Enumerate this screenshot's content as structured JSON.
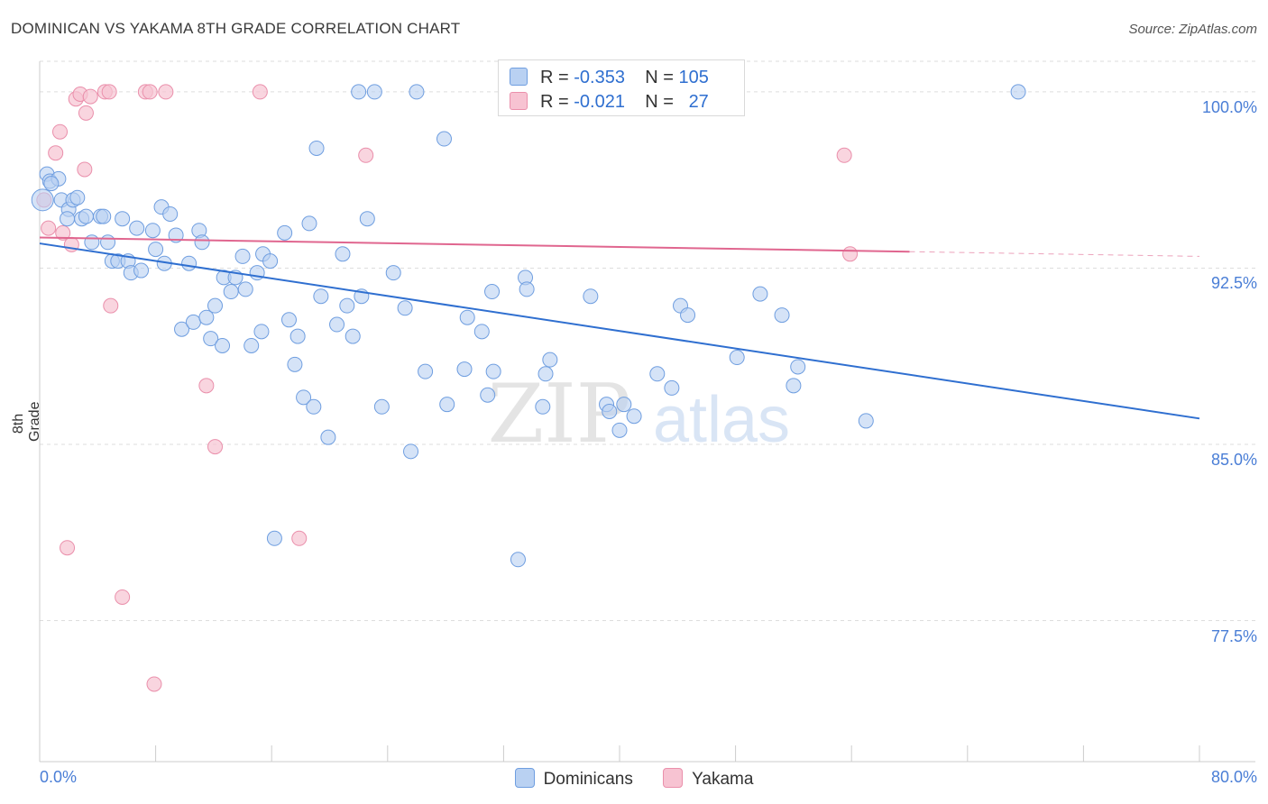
{
  "header": {
    "title": "DOMINICAN VS YAKAMA 8TH GRADE CORRELATION CHART",
    "source": "Source: ZipAtlas.com"
  },
  "legend": {
    "rows": [
      {
        "r_label": "R =",
        "r_value": "-0.353",
        "n_label": "N =",
        "n_value": "105"
      },
      {
        "r_label": "R =",
        "r_value": "-0.021",
        "n_label": "N =",
        "n_value": "27"
      }
    ]
  },
  "bottom_legend": [
    "Dominicans",
    "Yakama"
  ],
  "watermark": {
    "zip": "ZIP",
    "atlas": "atlas"
  },
  "colors": {
    "dominicans_fill": "#b9d1f2",
    "dominicans_stroke": "#6f9ee0",
    "dominicans_line": "#2f6fd0",
    "yakama_fill": "#f7c3d2",
    "yakama_stroke": "#ea8fab",
    "yakama_line": "#e0668f",
    "axis_text": "#4a7ed6",
    "grid": "#dddddd"
  },
  "chart_data": {
    "type": "scatter",
    "title": "DOMINICAN VS YAKAMA 8TH GRADE CORRELATION CHART",
    "xlabel": "",
    "ylabel": "8th Grade",
    "xlim": [
      0,
      80
    ],
    "ylim": [
      71.5,
      101.3
    ],
    "x_tick_labels": [
      "0.0%",
      "80.0%"
    ],
    "y_tick_labels": [
      "100.0%",
      "92.5%",
      "85.0%",
      "77.5%"
    ],
    "y_ticks": [
      100.0,
      92.5,
      85.0,
      77.5
    ],
    "grid": true,
    "legend_position": "top-center",
    "series": [
      {
        "name": "Dominicans",
        "points": [
          [
            0.2,
            95.4
          ],
          [
            0.5,
            96.5
          ],
          [
            0.7,
            96.2
          ],
          [
            1.3,
            96.3
          ],
          [
            1.5,
            95.4
          ],
          [
            2.0,
            95.0
          ],
          [
            2.3,
            95.4
          ],
          [
            2.6,
            95.5
          ],
          [
            2.9,
            94.6
          ],
          [
            3.2,
            94.7
          ],
          [
            3.6,
            93.6
          ],
          [
            4.2,
            94.7
          ],
          [
            4.4,
            94.7
          ],
          [
            4.7,
            93.6
          ],
          [
            5.0,
            92.8
          ],
          [
            5.4,
            92.8
          ],
          [
            5.7,
            94.6
          ],
          [
            6.1,
            92.8
          ],
          [
            6.3,
            92.3
          ],
          [
            6.7,
            94.2
          ],
          [
            7.0,
            92.4
          ],
          [
            7.8,
            94.1
          ],
          [
            8.0,
            93.3
          ],
          [
            8.4,
            95.1
          ],
          [
            8.6,
            92.7
          ],
          [
            9.0,
            94.8
          ],
          [
            9.4,
            93.9
          ],
          [
            9.8,
            89.9
          ],
          [
            10.3,
            92.7
          ],
          [
            10.6,
            90.2
          ],
          [
            11.0,
            94.1
          ],
          [
            11.2,
            93.6
          ],
          [
            11.5,
            90.4
          ],
          [
            11.8,
            89.5
          ],
          [
            12.1,
            90.9
          ],
          [
            12.6,
            89.2
          ],
          [
            12.7,
            92.1
          ],
          [
            13.2,
            91.5
          ],
          [
            13.5,
            92.1
          ],
          [
            14.0,
            93.0
          ],
          [
            14.2,
            91.6
          ],
          [
            14.6,
            89.2
          ],
          [
            15.0,
            92.3
          ],
          [
            15.3,
            89.8
          ],
          [
            15.4,
            93.1
          ],
          [
            15.9,
            92.8
          ],
          [
            16.2,
            81.0
          ],
          [
            16.9,
            94.0
          ],
          [
            17.2,
            90.3
          ],
          [
            17.6,
            88.4
          ],
          [
            17.8,
            89.6
          ],
          [
            18.2,
            87.0
          ],
          [
            18.6,
            94.4
          ],
          [
            18.9,
            86.6
          ],
          [
            19.1,
            97.6
          ],
          [
            19.4,
            91.3
          ],
          [
            19.9,
            85.3
          ],
          [
            20.5,
            90.1
          ],
          [
            20.9,
            93.1
          ],
          [
            21.2,
            90.9
          ],
          [
            21.6,
            89.6
          ],
          [
            22.0,
            100.0
          ],
          [
            22.2,
            91.3
          ],
          [
            22.6,
            94.6
          ],
          [
            23.1,
            100.0
          ],
          [
            23.6,
            86.6
          ],
          [
            24.4,
            92.3
          ],
          [
            25.2,
            90.8
          ],
          [
            25.6,
            84.7
          ],
          [
            26.0,
            100.0
          ],
          [
            26.6,
            88.1
          ],
          [
            27.9,
            98.0
          ],
          [
            28.1,
            86.7
          ],
          [
            29.3,
            88.2
          ],
          [
            29.5,
            90.4
          ],
          [
            30.5,
            89.8
          ],
          [
            30.9,
            87.1
          ],
          [
            31.2,
            91.5
          ],
          [
            31.3,
            88.1
          ],
          [
            32.5,
            100.0
          ],
          [
            33.0,
            80.1
          ],
          [
            33.5,
            92.1
          ],
          [
            33.6,
            91.6
          ],
          [
            34.7,
            86.6
          ],
          [
            34.9,
            88.0
          ],
          [
            35.2,
            88.6
          ],
          [
            38.0,
            91.3
          ],
          [
            39.1,
            86.7
          ],
          [
            39.3,
            86.4
          ],
          [
            40.0,
            85.6
          ],
          [
            40.3,
            86.7
          ],
          [
            41.0,
            86.2
          ],
          [
            42.6,
            88.0
          ],
          [
            43.6,
            87.4
          ],
          [
            44.2,
            90.9
          ],
          [
            44.7,
            90.5
          ],
          [
            48.1,
            88.7
          ],
          [
            49.7,
            91.4
          ],
          [
            51.2,
            90.5
          ],
          [
            52.0,
            87.5
          ],
          [
            52.3,
            88.3
          ],
          [
            57.0,
            86.0
          ],
          [
            67.5,
            100.0
          ],
          [
            0.8,
            96.1
          ],
          [
            1.9,
            94.6
          ]
        ],
        "trend": {
          "x": [
            0,
            80
          ],
          "y": [
            93.55,
            86.1
          ]
        }
      },
      {
        "name": "Yakama",
        "points": [
          [
            0.3,
            95.4
          ],
          [
            0.6,
            94.2
          ],
          [
            1.1,
            97.4
          ],
          [
            1.4,
            98.3
          ],
          [
            1.6,
            94.0
          ],
          [
            1.9,
            80.6
          ],
          [
            2.2,
            93.5
          ],
          [
            2.5,
            99.7
          ],
          [
            2.8,
            99.9
          ],
          [
            3.1,
            96.7
          ],
          [
            3.2,
            99.1
          ],
          [
            3.5,
            99.8
          ],
          [
            4.5,
            100.0
          ],
          [
            4.8,
            100.0
          ],
          [
            4.9,
            90.9
          ],
          [
            5.7,
            78.5
          ],
          [
            7.3,
            100.0
          ],
          [
            7.6,
            100.0
          ],
          [
            7.9,
            74.8
          ],
          [
            8.7,
            100.0
          ],
          [
            11.5,
            87.5
          ],
          [
            12.1,
            84.9
          ],
          [
            15.2,
            100.0
          ],
          [
            17.9,
            81.0
          ],
          [
            22.5,
            97.3
          ],
          [
            55.5,
            97.3
          ],
          [
            55.9,
            93.1
          ]
        ],
        "trend": {
          "x": [
            0,
            60
          ],
          "y": [
            93.8,
            93.2
          ]
        },
        "trend_dashed": {
          "x": [
            60,
            80
          ],
          "y": [
            93.2,
            93.0
          ]
        }
      }
    ]
  }
}
